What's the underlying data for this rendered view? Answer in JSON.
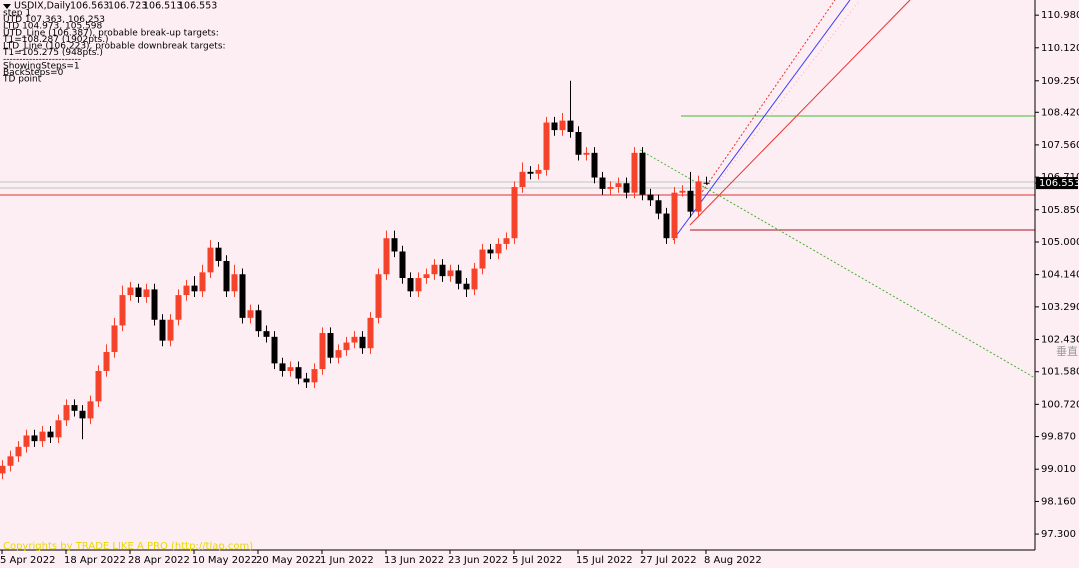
{
  "chart_data": {
    "type": "candlestick",
    "symbol": "USDIX,Daily",
    "info_lines": [
      "step 1",
      "UTD 107.363, 106.253",
      "LTD 104.973, 105.598",
      "UTD_Line (106.387), probable break-up targets:",
      "T1=108.287 (1902pts.)",
      "LTD_Line (106.223), probable downbreak targets:",
      "T1=105.275 (948pts.)",
      "------------------------",
      "ShowingSteps=1",
      "BackSteps=0",
      "TD point"
    ],
    "copyright": "Copyrights by TRADE LIKE A PRO (http://tlap.com)",
    "side_label": "垂直",
    "up_color": "#f5432b",
    "down_color": "#000000",
    "categories": [
      "5 Apr 2022",
      null,
      null,
      null,
      null,
      null,
      null,
      null,
      "18 Apr 2022",
      null,
      null,
      null,
      null,
      null,
      null,
      null,
      "28 Apr 2022",
      null,
      null,
      null,
      null,
      null,
      null,
      null,
      "10 May 2022",
      null,
      null,
      null,
      null,
      null,
      null,
      null,
      "20 May 2022",
      null,
      null,
      null,
      null,
      null,
      null,
      null,
      "1 Jun 2022",
      null,
      null,
      null,
      null,
      null,
      null,
      null,
      "13 Jun 2022",
      null,
      null,
      null,
      null,
      null,
      null,
      null,
      "23 Jun 2022",
      null,
      null,
      null,
      null,
      null,
      null,
      null,
      "5 Jul 2022",
      null,
      null,
      null,
      null,
      null,
      null,
      null,
      "15 Jul 2022",
      null,
      null,
      null,
      null,
      null,
      null,
      null,
      "27 Jul 2022",
      null,
      null,
      null,
      null,
      null,
      null,
      null,
      "8 Aug 2022"
    ],
    "open": [
      98.9,
      99.1,
      99.35,
      99.6,
      99.9,
      99.75,
      100.0,
      99.85,
      100.3,
      100.7,
      100.55,
      100.35,
      100.8,
      101.6,
      102.1,
      102.8,
      103.6,
      103.8,
      103.55,
      103.75,
      102.95,
      102.4,
      102.95,
      103.6,
      103.85,
      103.7,
      104.2,
      104.85,
      104.5,
      103.7,
      104.15,
      103.0,
      103.2,
      102.65,
      102.5,
      101.8,
      101.6,
      101.7,
      101.4,
      101.3,
      101.65,
      102.6,
      101.95,
      102.15,
      102.35,
      102.5,
      102.2,
      103.0,
      104.15,
      105.1,
      104.75,
      104.05,
      103.7,
      104.05,
      104.15,
      104.4,
      104.1,
      104.25,
      103.9,
      103.75,
      104.3,
      104.8,
      104.7,
      104.95,
      105.1,
      106.45,
      106.85,
      106.8,
      106.9,
      108.15,
      107.95,
      108.2,
      107.9,
      107.3,
      107.35,
      106.7,
      106.4,
      106.45,
      106.55,
      106.3,
      107.35,
      106.25,
      106.1,
      105.75,
      105.1,
      106.3,
      106.35,
      105.8,
      106.563
    ],
    "high": [
      99.25,
      99.5,
      99.75,
      100.05,
      100.05,
      100.15,
      100.15,
      100.45,
      100.85,
      100.85,
      100.7,
      100.95,
      101.75,
      102.3,
      103.0,
      103.85,
      103.95,
      103.9,
      103.9,
      103.9,
      103.1,
      103.1,
      103.75,
      104.0,
      104.1,
      104.4,
      105.05,
      105.0,
      104.65,
      104.4,
      104.3,
      103.35,
      103.35,
      102.8,
      102.65,
      101.95,
      101.85,
      101.85,
      101.55,
      101.8,
      102.75,
      102.75,
      102.3,
      102.5,
      102.65,
      102.65,
      103.15,
      104.3,
      105.3,
      105.3,
      104.9,
      104.2,
      104.2,
      104.3,
      104.55,
      104.55,
      104.4,
      104.4,
      104.05,
      104.45,
      104.95,
      104.95,
      105.1,
      105.25,
      106.6,
      107.1,
      107.0,
      107.05,
      108.3,
      108.3,
      108.4,
      109.25,
      108.05,
      107.5,
      107.5,
      106.85,
      106.6,
      106.7,
      106.7,
      107.5,
      107.5,
      106.4,
      106.25,
      105.9,
      106.45,
      106.5,
      106.85,
      106.75,
      106.723
    ],
    "low": [
      98.75,
      98.95,
      99.2,
      99.45,
      99.6,
      99.6,
      99.7,
      99.7,
      100.15,
      100.4,
      99.8,
      100.2,
      100.65,
      101.45,
      101.95,
      102.65,
      103.45,
      103.4,
      103.4,
      102.8,
      102.25,
      102.25,
      102.8,
      103.45,
      103.55,
      103.55,
      104.05,
      104.35,
      103.55,
      103.55,
      102.85,
      102.85,
      102.5,
      102.35,
      101.65,
      101.45,
      101.45,
      101.25,
      101.15,
      101.15,
      101.5,
      101.8,
      101.8,
      102.0,
      102.2,
      102.05,
      102.05,
      102.85,
      104.0,
      104.6,
      103.9,
      103.55,
      103.55,
      103.9,
      104.0,
      103.95,
      103.95,
      103.75,
      103.55,
      103.6,
      104.15,
      104.55,
      104.55,
      104.8,
      104.95,
      106.3,
      106.65,
      106.65,
      106.75,
      107.8,
      107.8,
      107.75,
      107.15,
      107.15,
      106.55,
      106.25,
      106.25,
      106.3,
      106.15,
      106.15,
      106.1,
      105.95,
      105.6,
      104.95,
      104.95,
      106.2,
      105.65,
      105.65,
      106.513
    ],
    "close": [
      99.1,
      99.35,
      99.6,
      99.9,
      99.75,
      100.0,
      99.85,
      100.3,
      100.7,
      100.55,
      100.35,
      100.8,
      101.6,
      102.1,
      102.8,
      103.6,
      103.8,
      103.55,
      103.75,
      102.95,
      102.4,
      102.95,
      103.6,
      103.85,
      103.7,
      104.2,
      104.85,
      104.5,
      103.7,
      104.15,
      103.0,
      103.2,
      102.65,
      102.5,
      101.8,
      101.6,
      101.7,
      101.4,
      101.3,
      101.65,
      102.6,
      101.95,
      102.15,
      102.35,
      102.5,
      102.2,
      103.0,
      104.15,
      105.1,
      104.75,
      104.05,
      103.7,
      104.05,
      104.15,
      104.4,
      104.1,
      104.25,
      103.9,
      103.75,
      104.3,
      104.8,
      104.7,
      104.95,
      105.1,
      106.45,
      106.85,
      106.8,
      106.9,
      108.15,
      107.95,
      108.2,
      107.9,
      107.3,
      107.35,
      106.7,
      106.4,
      106.45,
      106.55,
      106.3,
      107.35,
      106.25,
      106.1,
      105.75,
      105.1,
      106.3,
      106.35,
      105.8,
      106.6,
      106.553
    ],
    "ylim": [
      96.88,
      111.38
    ],
    "yticks": [
      {
        "value": 110.98,
        "label": "110.980"
      },
      {
        "value": 110.12,
        "label": "110.120"
      },
      {
        "value": 109.25,
        "label": "109.250"
      },
      {
        "value": 108.42,
        "label": "108.420"
      },
      {
        "value": 107.56,
        "label": "107.560"
      },
      {
        "value": 106.71,
        "label": "106.710"
      },
      {
        "value": 105.85,
        "label": "105.850"
      },
      {
        "value": 105.0,
        "label": "105.000"
      },
      {
        "value": 104.14,
        "label": "104.140"
      },
      {
        "value": 103.29,
        "label": "103.290"
      },
      {
        "value": 102.43,
        "label": "102.430"
      },
      {
        "value": 101.58,
        "label": "101.580"
      },
      {
        "value": 100.72,
        "label": "100.720"
      },
      {
        "value": 99.87,
        "label": "99.870"
      },
      {
        "value": 99.01,
        "label": "99.010"
      },
      {
        "value": 98.16,
        "label": "98.160"
      },
      {
        "value": 97.3,
        "label": "97.300"
      }
    ]
  }
}
